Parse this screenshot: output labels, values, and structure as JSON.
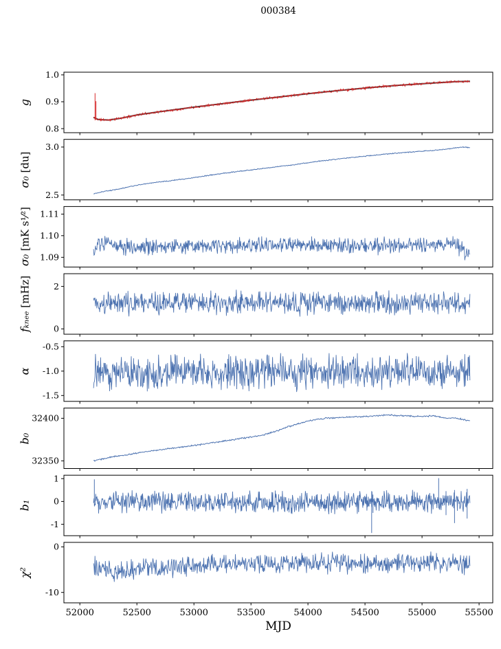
{
  "chart_data": {
    "type": "line",
    "title": "000384",
    "xlabel": "MJD",
    "grid": false,
    "legend": null,
    "xlim": [
      51860,
      55620
    ],
    "x_data_range": [
      52120,
      55420
    ],
    "xticks": [
      52000,
      52500,
      53000,
      53500,
      54000,
      54500,
      55000,
      55500
    ],
    "xtick_labels": [
      "52000",
      "52500",
      "53000",
      "53500",
      "54000",
      "54500",
      "55000",
      "55500"
    ],
    "colors": {
      "line_blue": "#4c72b0",
      "line_red": "#d62728",
      "line_dark": "#333333",
      "axis": "#000000"
    },
    "panels": [
      {
        "ylabel_var": "g",
        "ylabel_unit": "",
        "ylim": [
          0.785,
          1.01
        ],
        "yticks": [
          0.8,
          0.9,
          1.0
        ],
        "ytick_labels": [
          "0.8",
          "0.9",
          "1.0"
        ],
        "series": [
          {
            "name": "gain-model",
            "color": "#333333",
            "width": 2.0,
            "n": 400,
            "noise": 0,
            "seed": 3,
            "trend": [
              [
                52120,
                0.842
              ],
              [
                52160,
                0.834
              ],
              [
                52250,
                0.832
              ],
              [
                52350,
                0.838
              ],
              [
                52500,
                0.851
              ],
              [
                52700,
                0.863
              ],
              [
                53000,
                0.88
              ],
              [
                53250,
                0.893
              ],
              [
                53500,
                0.906
              ],
              [
                53750,
                0.918
              ],
              [
                54000,
                0.93
              ],
              [
                54250,
                0.941
              ],
              [
                54500,
                0.951
              ],
              [
                54750,
                0.96
              ],
              [
                55000,
                0.967
              ],
              [
                55150,
                0.971
              ],
              [
                55300,
                0.975
              ],
              [
                55420,
                0.976
              ]
            ]
          },
          {
            "name": "gain-measured",
            "color": "#d62728",
            "width": 1.0,
            "n": 800,
            "noise": 0.005,
            "seed": 11,
            "trend": [
              [
                52120,
                0.842
              ],
              [
                52160,
                0.834
              ],
              [
                52250,
                0.832
              ],
              [
                52350,
                0.838
              ],
              [
                52500,
                0.851
              ],
              [
                52700,
                0.863
              ],
              [
                53000,
                0.88
              ],
              [
                53250,
                0.893
              ],
              [
                53500,
                0.906
              ],
              [
                53750,
                0.918
              ],
              [
                54000,
                0.93
              ],
              [
                54250,
                0.941
              ],
              [
                54500,
                0.951
              ],
              [
                54750,
                0.96
              ],
              [
                55000,
                0.967
              ],
              [
                55150,
                0.971
              ],
              [
                55300,
                0.975
              ],
              [
                55420,
                0.976
              ]
            ]
          }
        ],
        "spikes": [
          {
            "x": 52133,
            "y0": 0.831,
            "y1": 0.932,
            "color": "#d62728"
          },
          {
            "x": 52141,
            "y0": 0.833,
            "y1": 0.902,
            "color": "#d62728"
          },
          {
            "x": 55400,
            "y0": 0.972,
            "y1": 0.98,
            "color": "#d62728"
          }
        ]
      },
      {
        "ylabel_var": "σ₀",
        "ylabel_unit": "[du]",
        "ylim": [
          2.45,
          3.08
        ],
        "yticks": [
          2.5,
          3.0
        ],
        "ytick_labels": [
          "2.5",
          "3.0"
        ],
        "series": [
          {
            "name": "sigma0-du",
            "color": "#4c72b0",
            "width": 1.0,
            "n": 600,
            "noise": 0.006,
            "seed": 21,
            "trend": [
              [
                52120,
                2.513
              ],
              [
                52200,
                2.535
              ],
              [
                52350,
                2.565
              ],
              [
                52500,
                2.603
              ],
              [
                52700,
                2.637
              ],
              [
                52900,
                2.665
              ],
              [
                53100,
                2.7
              ],
              [
                53300,
                2.733
              ],
              [
                53500,
                2.762
              ],
              [
                53700,
                2.79
              ],
              [
                53900,
                2.82
              ],
              [
                54100,
                2.853
              ],
              [
                54300,
                2.88
              ],
              [
                54500,
                2.905
              ],
              [
                54700,
                2.928
              ],
              [
                54900,
                2.948
              ],
              [
                55100,
                2.965
              ],
              [
                55250,
                2.983
              ],
              [
                55350,
                3.0
              ],
              [
                55420,
                2.993
              ]
            ]
          }
        ],
        "spikes": []
      },
      {
        "ylabel_var": "σ₀",
        "ylabel_unit": "[mK s¹⁄²]",
        "ylim": [
          1.0855,
          1.1135
        ],
        "yticks": [
          1.09,
          1.1,
          1.11
        ],
        "ytick_labels": [
          "1.09",
          "1.10",
          "1.11"
        ],
        "series": [
          {
            "name": "sigma0-mks",
            "color": "#4c72b0",
            "width": 0.9,
            "n": 800,
            "noise": 0.0045,
            "seed": 31,
            "trend": [
              [
                52120,
                1.0915
              ],
              [
                52160,
                1.0955
              ],
              [
                52250,
                1.0962
              ],
              [
                52400,
                1.095
              ],
              [
                52700,
                1.0952
              ],
              [
                53000,
                1.0955
              ],
              [
                53400,
                1.095
              ],
              [
                54000,
                1.0958
              ],
              [
                54500,
                1.0952
              ],
              [
                55000,
                1.0955
              ],
              [
                55250,
                1.096
              ],
              [
                55340,
                1.0945
              ],
              [
                55390,
                1.092
              ],
              [
                55420,
                1.093
              ]
            ]
          }
        ],
        "spikes": []
      },
      {
        "ylabel_var": "fₖₙₑₑ",
        "ylabel_unit": "[mHz]",
        "ylim": [
          -0.25,
          2.6
        ],
        "yticks": [
          0,
          2
        ],
        "ytick_labels": [
          "0",
          "2"
        ],
        "series": [
          {
            "name": "fknee",
            "color": "#4c72b0",
            "width": 0.9,
            "n": 800,
            "noise": 0.65,
            "seed": 41,
            "trend": [
              [
                52120,
                1.22
              ],
              [
                55420,
                1.22
              ]
            ]
          }
        ],
        "spikes": []
      },
      {
        "ylabel_var": "α",
        "ylabel_unit": "",
        "ylim": [
          -1.62,
          -0.38
        ],
        "yticks": [
          -1.5,
          -1.0,
          -0.5
        ],
        "ytick_labels": [
          "-1.5",
          "-1.0",
          "-0.5"
        ],
        "series": [
          {
            "name": "alpha",
            "color": "#4c72b0",
            "width": 0.9,
            "n": 800,
            "noise": 0.42,
            "seed": 51,
            "trend": [
              [
                52120,
                -1.02
              ],
              [
                55420,
                -1.02
              ]
            ]
          }
        ],
        "spikes": []
      },
      {
        "ylabel_var": "b₀",
        "ylabel_unit": "",
        "ylim": [
          32341,
          32412
        ],
        "yticks": [
          32350,
          32400
        ],
        "ytick_labels": [
          "32350",
          "32400"
        ],
        "series": [
          {
            "name": "b0",
            "color": "#4c72b0",
            "width": 1.0,
            "n": 600,
            "noise": 1.0,
            "seed": 61,
            "trend": [
              [
                52120,
                32350
              ],
              [
                52300,
                32355
              ],
              [
                52500,
                32359
              ],
              [
                52700,
                32363
              ],
              [
                53000,
                32368
              ],
              [
                53300,
                32374
              ],
              [
                53500,
                32378
              ],
              [
                53600,
                32380
              ],
              [
                53700,
                32384
              ],
              [
                53850,
                32391
              ],
              [
                54000,
                32397
              ],
              [
                54150,
                32400
              ],
              [
                54300,
                32401
              ],
              [
                54500,
                32402
              ],
              [
                54600,
                32403
              ],
              [
                54700,
                32404
              ],
              [
                54800,
                32403
              ],
              [
                55000,
                32402
              ],
              [
                55100,
                32403
              ],
              [
                55200,
                32400
              ],
              [
                55300,
                32400
              ],
              [
                55420,
                32397
              ]
            ]
          }
        ],
        "spikes": []
      },
      {
        "ylabel_var": "b₁",
        "ylabel_unit": "",
        "ylim": [
          -1.5,
          1.15
        ],
        "yticks": [
          -1,
          0,
          1
        ],
        "ytick_labels": [
          "-1",
          "0",
          "1"
        ],
        "series": [
          {
            "name": "b1",
            "color": "#4c72b0",
            "width": 0.9,
            "n": 900,
            "noise": 0.55,
            "seed": 71,
            "trend": [
              [
                52120,
                -0.02
              ],
              [
                55420,
                -0.02
              ]
            ]
          }
        ],
        "spikes": [
          {
            "x": 52127,
            "y0": -0.05,
            "y1": 0.97,
            "color": "#4c72b0"
          },
          {
            "x": 54558,
            "y0": 0.45,
            "y1": -1.38,
            "color": "#4c72b0"
          },
          {
            "x": 54570,
            "y0": 0.3,
            "y1": -0.5,
            "color": "#4c72b0"
          },
          {
            "x": 55146,
            "y0": -0.3,
            "y1": 1.02,
            "color": "#4c72b0"
          },
          {
            "x": 55210,
            "y0": 0.45,
            "y1": -0.6,
            "color": "#4c72b0"
          },
          {
            "x": 55285,
            "y0": 0.5,
            "y1": -0.95,
            "color": "#4c72b0"
          },
          {
            "x": 55395,
            "y0": 0.55,
            "y1": -0.75,
            "color": "#4c72b0"
          }
        ]
      },
      {
        "ylabel_var": "χ²",
        "ylabel_unit": "",
        "ylim": [
          -12.3,
          1.0
        ],
        "yticks": [
          -10,
          0
        ],
        "ytick_labels": [
          "-10",
          "0"
        ],
        "series": [
          {
            "name": "chi2",
            "color": "#4c72b0",
            "width": 0.9,
            "n": 800,
            "noise": 2.6,
            "seed": 81,
            "trend": [
              [
                52120,
                -4.0
              ],
              [
                52220,
                -5.0
              ],
              [
                52300,
                -5.5
              ],
              [
                52420,
                -5.2
              ],
              [
                52550,
                -4.6
              ],
              [
                52700,
                -4.8
              ],
              [
                52900,
                -4.2
              ],
              [
                53100,
                -4.0
              ],
              [
                53400,
                -3.8
              ],
              [
                53700,
                -3.5
              ],
              [
                54000,
                -3.4
              ],
              [
                54300,
                -3.7
              ],
              [
                54600,
                -3.8
              ],
              [
                54900,
                -3.5
              ],
              [
                55100,
                -3.4
              ],
              [
                55300,
                -3.6
              ],
              [
                55420,
                -3.9
              ]
            ]
          }
        ],
        "spikes": []
      }
    ]
  }
}
